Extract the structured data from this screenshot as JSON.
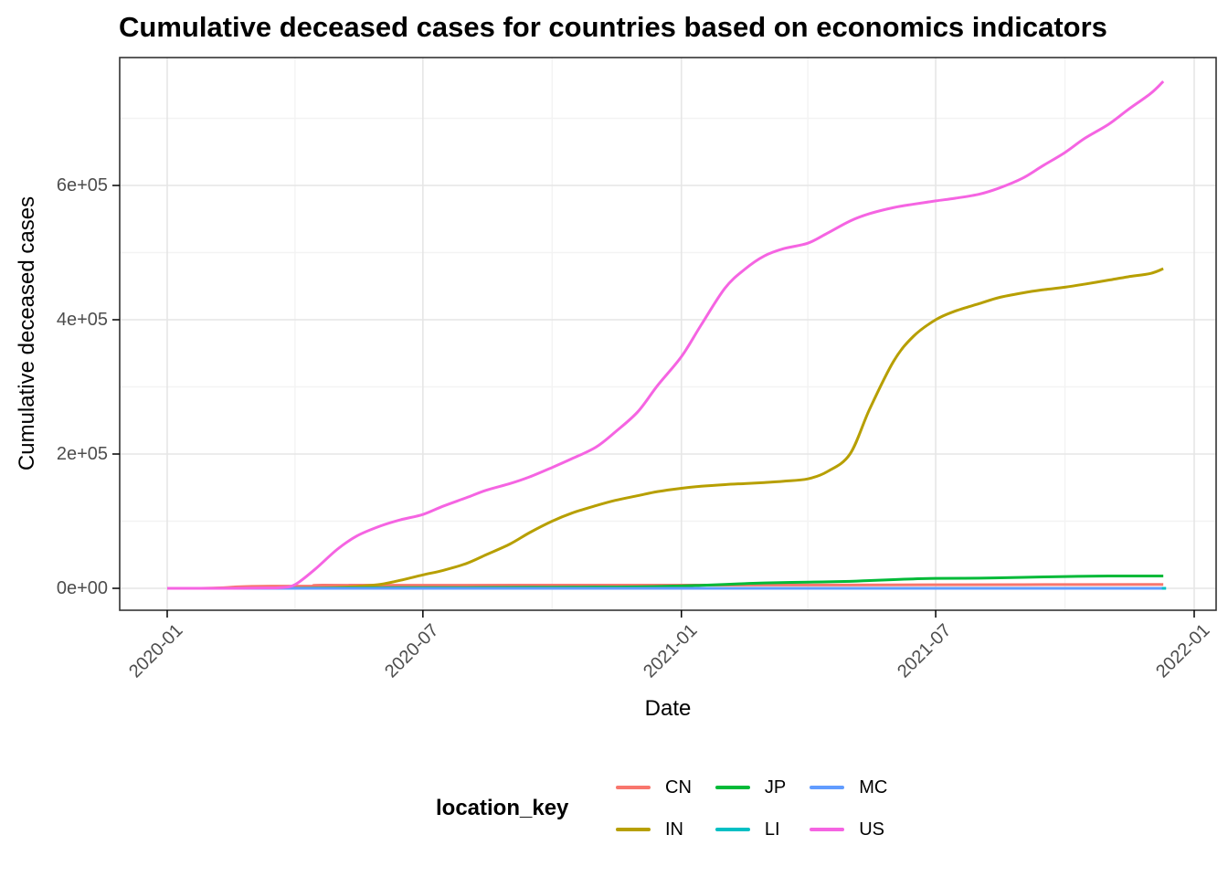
{
  "title": "Cumulative deceased cases for countries based on economics indicators",
  "chart_data": {
    "type": "line",
    "title": "Cumulative deceased cases for countries based on economics indicators",
    "xlabel": "Date",
    "ylabel": "Cumulative deceased cases",
    "legend_title": "location_key",
    "legend_position": "bottom",
    "grid": true,
    "x_ticks": [
      {
        "label": "2020-01",
        "date": "2020-01-01"
      },
      {
        "label": "2020-07",
        "date": "2020-07-01"
      },
      {
        "label": "2021-01",
        "date": "2021-01-01"
      },
      {
        "label": "2021-07",
        "date": "2021-07-01"
      },
      {
        "label": "2022-01",
        "date": "2022-01-01"
      }
    ],
    "x_minor": [
      "2020-04-01",
      "2020-10-01",
      "2021-04-01",
      "2021-10-01"
    ],
    "y_ticks": [
      {
        "label": "0e+00",
        "value": 0
      },
      {
        "label": "2e+05",
        "value": 200000
      },
      {
        "label": "4e+05",
        "value": 400000
      },
      {
        "label": "6e+05",
        "value": 600000
      }
    ],
    "y_minor": [
      100000,
      300000,
      500000,
      700000
    ],
    "ylim": [
      0,
      790000
    ],
    "x_domain": [
      "2020-01-01",
      "2022-01-01"
    ],
    "series": [
      {
        "name": "CN",
        "color": "#F8766D",
        "points": [
          [
            "2020-01-01",
            0
          ],
          [
            "2020-01-25",
            60
          ],
          [
            "2020-02-10",
            900
          ],
          [
            "2020-02-20",
            2200
          ],
          [
            "2020-03-01",
            2900
          ],
          [
            "2020-03-15",
            3200
          ],
          [
            "2020-04-01",
            3300
          ],
          [
            "2020-04-16",
            3350
          ],
          [
            "2020-04-17",
            4630
          ],
          [
            "2020-06-01",
            4640
          ],
          [
            "2020-12-01",
            4750
          ],
          [
            "2021-03-01",
            4850
          ],
          [
            "2021-06-01",
            5100
          ],
          [
            "2021-09-01",
            5500
          ],
          [
            "2021-12-10",
            5700
          ]
        ]
      },
      {
        "name": "IN",
        "color": "#B79F00",
        "points": [
          [
            "2020-01-01",
            0
          ],
          [
            "2020-03-15",
            20
          ],
          [
            "2020-04-15",
            500
          ],
          [
            "2020-05-01",
            1300
          ],
          [
            "2020-05-15",
            2800
          ],
          [
            "2020-06-01",
            6000
          ],
          [
            "2020-06-15",
            12000
          ],
          [
            "2020-07-01",
            20000
          ],
          [
            "2020-07-15",
            26500
          ],
          [
            "2020-08-01",
            37000
          ],
          [
            "2020-08-15",
            50000
          ],
          [
            "2020-09-01",
            66000
          ],
          [
            "2020-09-15",
            83000
          ],
          [
            "2020-10-01",
            100000
          ],
          [
            "2020-10-15",
            112000
          ],
          [
            "2020-11-01",
            123000
          ],
          [
            "2020-11-15",
            131000
          ],
          [
            "2020-12-01",
            138000
          ],
          [
            "2020-12-15",
            144000
          ],
          [
            "2021-01-01",
            149000
          ],
          [
            "2021-01-15",
            152000
          ],
          [
            "2021-02-01",
            154500
          ],
          [
            "2021-02-15",
            156000
          ],
          [
            "2021-03-01",
            157500
          ],
          [
            "2021-03-15",
            159500
          ],
          [
            "2021-04-01",
            163000
          ],
          [
            "2021-04-15",
            174000
          ],
          [
            "2021-05-01",
            200000
          ],
          [
            "2021-05-15",
            267000
          ],
          [
            "2021-06-01",
            338000
          ],
          [
            "2021-06-15",
            375000
          ],
          [
            "2021-07-01",
            400000
          ],
          [
            "2021-07-15",
            413000
          ],
          [
            "2021-08-01",
            424000
          ],
          [
            "2021-08-15",
            433000
          ],
          [
            "2021-09-01",
            440000
          ],
          [
            "2021-09-15",
            444500
          ],
          [
            "2021-10-01",
            448500
          ],
          [
            "2021-10-15",
            453000
          ],
          [
            "2021-11-01",
            459000
          ],
          [
            "2021-11-15",
            464000
          ],
          [
            "2021-12-01",
            469000
          ],
          [
            "2021-12-10",
            476000
          ]
        ]
      },
      {
        "name": "JP",
        "color": "#00BA38",
        "points": [
          [
            "2020-01-01",
            0
          ],
          [
            "2020-03-01",
            30
          ],
          [
            "2020-04-01",
            100
          ],
          [
            "2020-05-01",
            500
          ],
          [
            "2020-06-01",
            900
          ],
          [
            "2020-07-01",
            1000
          ],
          [
            "2020-08-01",
            1050
          ],
          [
            "2020-09-01",
            1300
          ],
          [
            "2020-10-01",
            1600
          ],
          [
            "2020-11-01",
            1800
          ],
          [
            "2020-12-01",
            2200
          ],
          [
            "2021-01-01",
            3500
          ],
          [
            "2021-01-15",
            4500
          ],
          [
            "2021-02-01",
            5800
          ],
          [
            "2021-02-15",
            7000
          ],
          [
            "2021-03-01",
            8000
          ],
          [
            "2021-04-01",
            9200
          ],
          [
            "2021-05-01",
            10400
          ],
          [
            "2021-05-15",
            11600
          ],
          [
            "2021-06-01",
            13000
          ],
          [
            "2021-06-15",
            14000
          ],
          [
            "2021-07-01",
            14800
          ],
          [
            "2021-08-01",
            15200
          ],
          [
            "2021-09-01",
            16300
          ],
          [
            "2021-10-01",
            17600
          ],
          [
            "2021-11-01",
            18300
          ],
          [
            "2021-12-10",
            18400
          ]
        ]
      },
      {
        "name": "LI",
        "color": "#00BFC4",
        "points": [
          [
            "2020-01-01",
            0
          ],
          [
            "2020-06-01",
            2
          ],
          [
            "2020-11-01",
            15
          ],
          [
            "2021-01-01",
            50
          ],
          [
            "2021-07-01",
            60
          ],
          [
            "2021-12-12",
            62
          ]
        ]
      },
      {
        "name": "MC",
        "color": "#619CFF",
        "points": [
          [
            "2020-01-01",
            0
          ],
          [
            "2020-06-01",
            1
          ],
          [
            "2021-01-01",
            10
          ],
          [
            "2021-07-01",
            33
          ],
          [
            "2021-12-09",
            37
          ]
        ]
      },
      {
        "name": "US",
        "color": "#F564E2",
        "points": [
          [
            "2020-01-01",
            0
          ],
          [
            "2020-02-15",
            10
          ],
          [
            "2020-03-10",
            500
          ],
          [
            "2020-03-22",
            1000
          ],
          [
            "2020-04-01",
            5500
          ],
          [
            "2020-04-15",
            28000
          ],
          [
            "2020-05-01",
            58000
          ],
          [
            "2020-05-15",
            78000
          ],
          [
            "2020-06-01",
            93000
          ],
          [
            "2020-06-15",
            102000
          ],
          [
            "2020-07-01",
            110000
          ],
          [
            "2020-07-15",
            122000
          ],
          [
            "2020-08-01",
            135000
          ],
          [
            "2020-08-15",
            146000
          ],
          [
            "2020-09-01",
            156000
          ],
          [
            "2020-09-15",
            166000
          ],
          [
            "2020-10-01",
            180000
          ],
          [
            "2020-10-15",
            193000
          ],
          [
            "2020-11-01",
            210000
          ],
          [
            "2020-11-15",
            233000
          ],
          [
            "2020-12-01",
            263000
          ],
          [
            "2020-12-15",
            302000
          ],
          [
            "2021-01-01",
            345000
          ],
          [
            "2021-01-15",
            392000
          ],
          [
            "2021-02-01",
            447000
          ],
          [
            "2021-02-15",
            475000
          ],
          [
            "2021-03-01",
            495000
          ],
          [
            "2021-03-15",
            506000
          ],
          [
            "2021-04-01",
            514000
          ],
          [
            "2021-04-15",
            529000
          ],
          [
            "2021-05-01",
            547000
          ],
          [
            "2021-05-15",
            558000
          ],
          [
            "2021-06-01",
            567000
          ],
          [
            "2021-06-15",
            572000
          ],
          [
            "2021-07-01",
            577000
          ],
          [
            "2021-07-15",
            581000
          ],
          [
            "2021-08-01",
            587000
          ],
          [
            "2021-08-15",
            596000
          ],
          [
            "2021-09-01",
            611000
          ],
          [
            "2021-09-15",
            629000
          ],
          [
            "2021-10-01",
            649000
          ],
          [
            "2021-10-15",
            670000
          ],
          [
            "2021-11-01",
            691000
          ],
          [
            "2021-11-15",
            713000
          ],
          [
            "2021-12-01",
            737000
          ],
          [
            "2021-12-10",
            755000
          ]
        ]
      }
    ],
    "style": {
      "background": "#FFFFFF",
      "panel_border": "#333333",
      "grid_major": "#E6E6E6",
      "grid_minor": "#F3F3F3",
      "axis_text": "#4D4D4D",
      "tick_mark": "#000000",
      "line_width": 3
    }
  }
}
